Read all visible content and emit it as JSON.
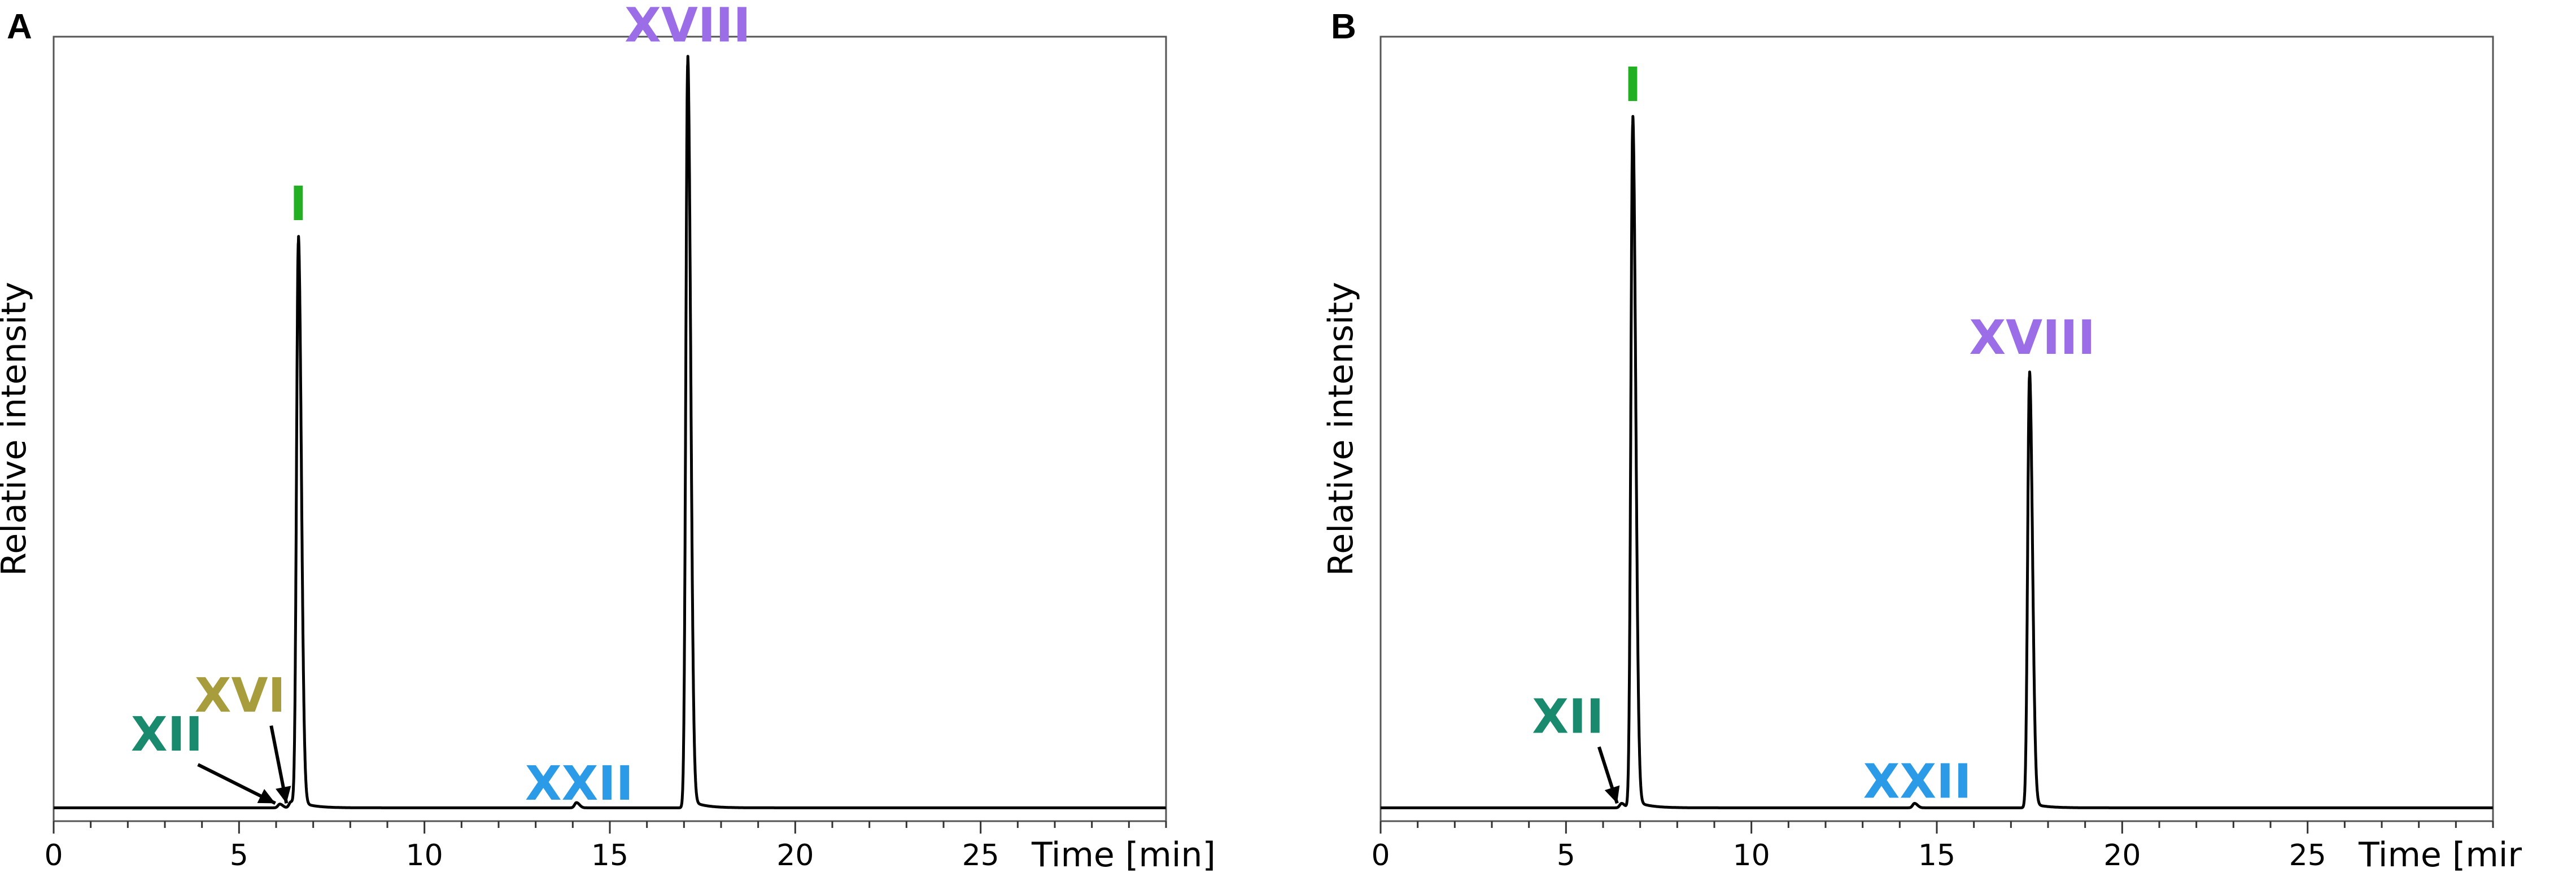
{
  "chart_data": [
    {
      "type": "line",
      "panel": "A",
      "xlabel": "Time [min]",
      "ylabel": "Relative intensity",
      "xlim": [
        0,
        30
      ],
      "ylim": [
        0,
        1
      ],
      "xticks": [
        0,
        5,
        10,
        15,
        20,
        25
      ],
      "minor_tick_step": 1,
      "grid": false,
      "peaks": [
        {
          "label": "XII",
          "time": 6.1,
          "intensity": 0.005,
          "color": "#1a8a6e",
          "annotated_with_arrow": true
        },
        {
          "label": "XVI",
          "time": 6.4,
          "intensity": 0.008,
          "color": "#a89d3c",
          "annotated_with_arrow": true
        },
        {
          "label": "I",
          "time": 6.6,
          "intensity": 0.76,
          "color": "#22b022",
          "annotated_with_arrow": false
        },
        {
          "label": "XXII",
          "time": 14.1,
          "intensity": 0.007,
          "color": "#2b9be8",
          "annotated_with_arrow": false
        },
        {
          "label": "XVIII",
          "time": 17.1,
          "intensity": 1.0,
          "color": "#9b6ee8",
          "annotated_with_arrow": false
        }
      ]
    },
    {
      "type": "line",
      "panel": "B",
      "xlabel": "Time [mir",
      "ylabel": "Relative intensity",
      "xlim": [
        0,
        30
      ],
      "ylim": [
        0,
        1
      ],
      "xticks": [
        0,
        5,
        10,
        15,
        20,
        25
      ],
      "minor_tick_step": 1,
      "grid": false,
      "peaks": [
        {
          "label": "XII",
          "time": 6.5,
          "intensity": 0.006,
          "color": "#1a8a6e",
          "annotated_with_arrow": true
        },
        {
          "label": "I",
          "time": 6.8,
          "intensity": 0.92,
          "color": "#22b022",
          "annotated_with_arrow": false
        },
        {
          "label": "XXII",
          "time": 14.4,
          "intensity": 0.006,
          "color": "#2b9be8",
          "annotated_with_arrow": false
        },
        {
          "label": "XVIII",
          "time": 17.5,
          "intensity": 0.58,
          "color": "#9b6ee8",
          "annotated_with_arrow": false
        }
      ]
    }
  ]
}
